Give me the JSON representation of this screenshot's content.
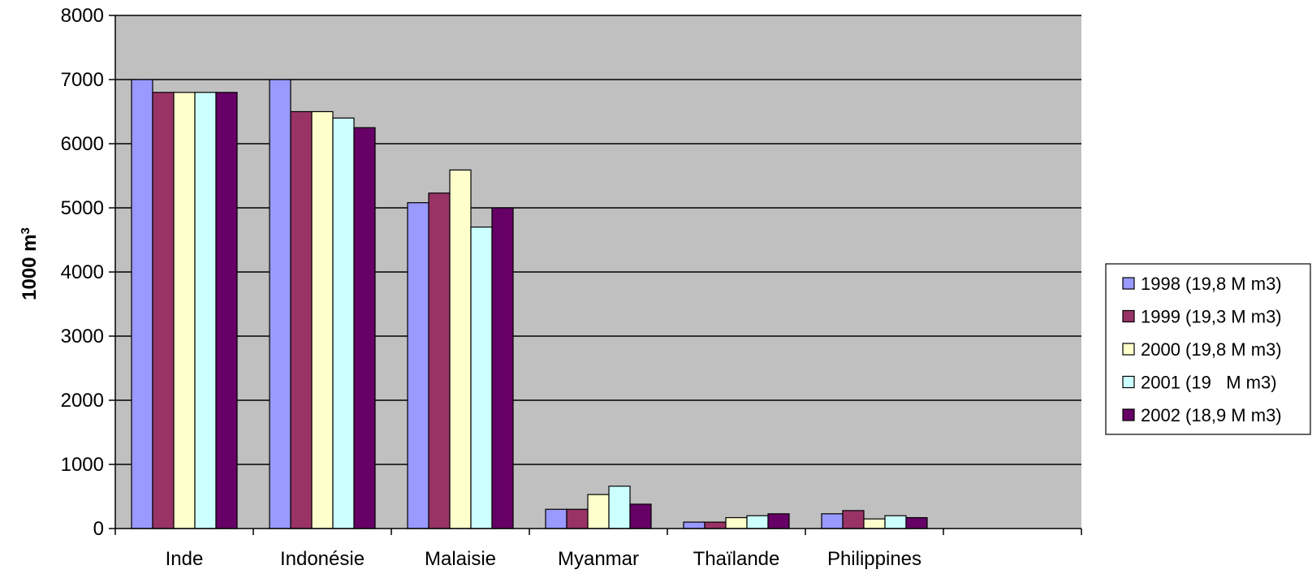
{
  "chart_data": {
    "type": "bar",
    "ylabel": "1000 m",
    "ylabel_superscript": "3",
    "ylim": [
      0,
      8000
    ],
    "yticks": [
      0,
      1000,
      2000,
      3000,
      4000,
      5000,
      6000,
      7000,
      8000
    ],
    "categories": [
      "Inde",
      "Indonésie",
      "Malaisie",
      "Myanmar",
      "Thaïlande",
      "Philippines",
      ""
    ],
    "series": [
      {
        "name": "1998 (19,8 M m3)",
        "color": "#9999FF",
        "values": [
          7000,
          7000,
          5080,
          300,
          100,
          230,
          null
        ]
      },
      {
        "name": "1999 (19,3 M m3)",
        "color": "#993366",
        "values": [
          6800,
          6500,
          5230,
          300,
          100,
          280,
          null
        ]
      },
      {
        "name": "2000 (19,8 M m3)",
        "color": "#FFFFCC",
        "values": [
          6800,
          6500,
          5590,
          530,
          170,
          150,
          null
        ]
      },
      {
        "name": "2001 (19   M m3)",
        "color": "#CCFFFF",
        "values": [
          6800,
          6400,
          4700,
          660,
          200,
          200,
          null
        ]
      },
      {
        "name": "2002 (18,9 M m3)",
        "color": "#660066",
        "values": [
          6800,
          6250,
          5000,
          380,
          230,
          170,
          null
        ]
      }
    ],
    "plot_background": "#C0C0C0",
    "grid": true,
    "legend_position": "right"
  }
}
